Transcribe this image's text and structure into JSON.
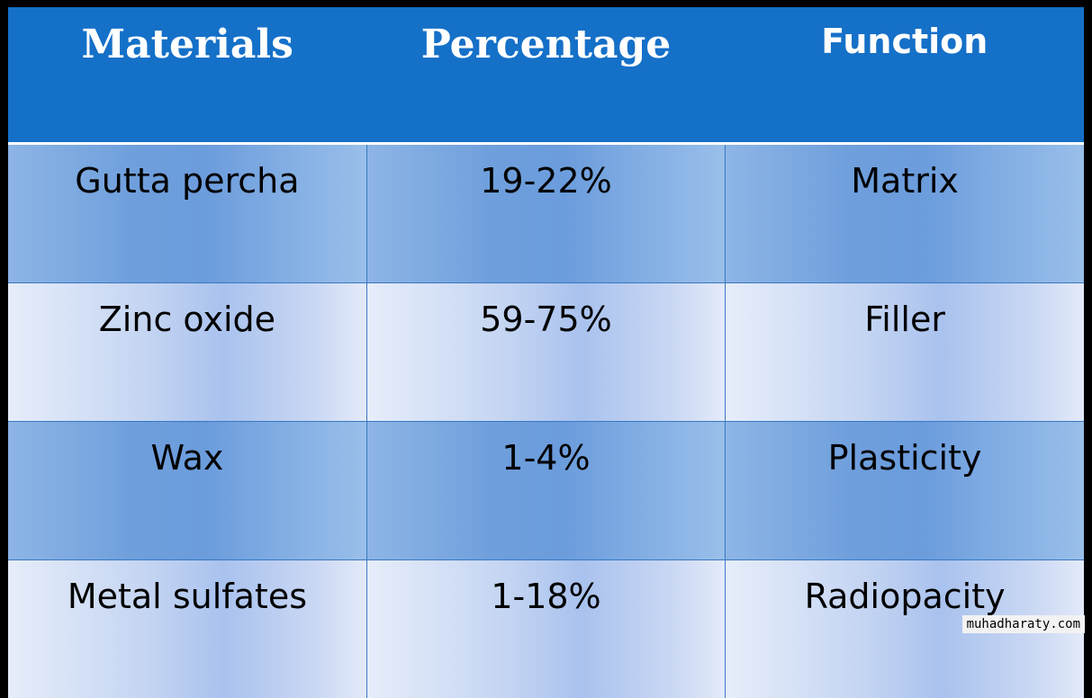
{
  "table": {
    "headers": [
      "Materials",
      "Percentage",
      "Function"
    ],
    "rows": [
      [
        "Gutta percha",
        "19-22%",
        "Matrix"
      ],
      [
        "Zinc oxide",
        "59-75%",
        "Filler"
      ],
      [
        "Wax",
        "1-4%",
        "Plasticity"
      ],
      [
        "Metal sulfates",
        "1-18%",
        "Radiopacity"
      ]
    ]
  },
  "watermark": "muhadharaty.com",
  "colors": {
    "header_bg": "#1570c8",
    "header_text": "#ffffff",
    "row_dark": "#6f9fdc",
    "row_light": "#c3d4f2",
    "border": "#3a78c0",
    "background": "#000000"
  }
}
